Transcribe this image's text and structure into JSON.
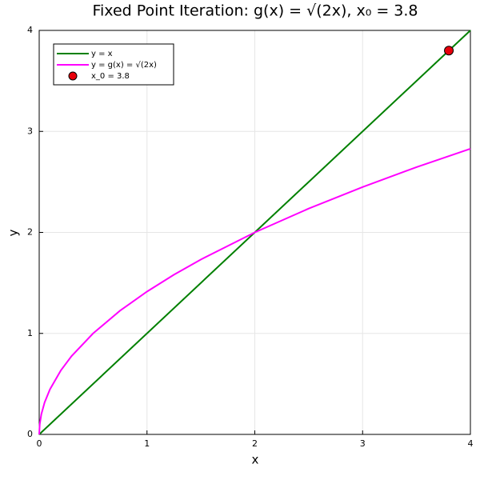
{
  "chart_data": {
    "type": "line",
    "title": "Fixed Point Iteration: g(x) = √(2x), x₀ = 3.8",
    "xlabel": "x",
    "ylabel": "y",
    "xlim": [
      0,
      4
    ],
    "ylim": [
      0,
      4
    ],
    "xticks": [
      0,
      1,
      2,
      3,
      4
    ],
    "yticks": [
      0,
      1,
      2,
      3,
      4
    ],
    "grid": true,
    "legend": "top-left",
    "series": [
      {
        "name": "y = x",
        "color": "#008000",
        "type": "line",
        "x": [
          0,
          4
        ],
        "values": [
          0,
          4
        ]
      },
      {
        "name": "y = g(x) = √(2x)",
        "color": "#ff00ff",
        "type": "line",
        "x": [
          0,
          0.005,
          0.02,
          0.05,
          0.1,
          0.2,
          0.3,
          0.5,
          0.75,
          1,
          1.25,
          1.5,
          2,
          2.5,
          3,
          3.5,
          4
        ],
        "values": [
          0,
          0.1,
          0.2,
          0.316,
          0.447,
          0.632,
          0.775,
          1,
          1.225,
          1.414,
          1.581,
          1.732,
          2,
          2.236,
          2.449,
          2.646,
          2.828
        ]
      },
      {
        "name": "x_0 = 3.8",
        "color": "#e8000b",
        "type": "scatter",
        "x": [
          3.8
        ],
        "values": [
          3.8
        ]
      }
    ]
  }
}
